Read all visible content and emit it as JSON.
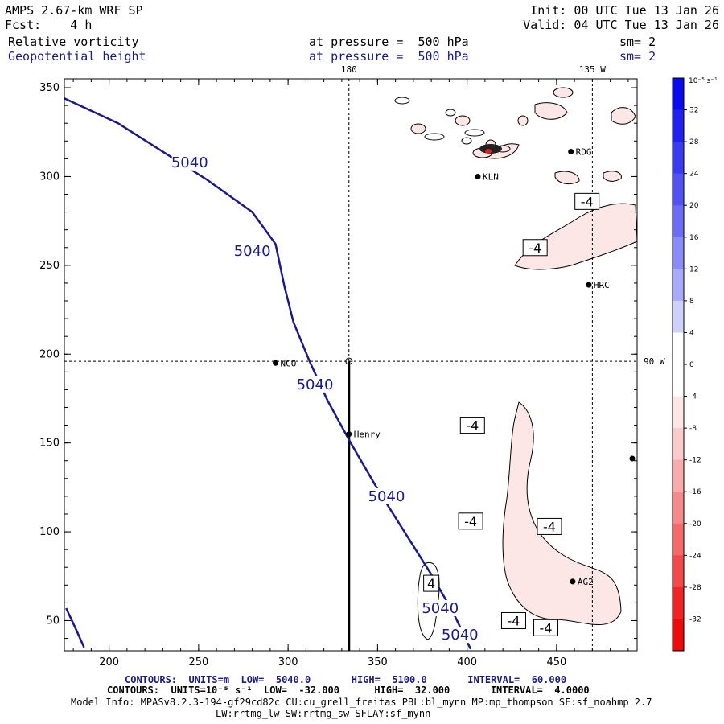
{
  "header": {
    "model": "AMPS 2.67-km WRF SP",
    "fcst_label": "Fcst:",
    "fcst_value": "4 h",
    "init": "Init: 00 UTC Tue 13 Jan 26",
    "valid": "Valid: 04 UTC Tue 13 Jan 26",
    "field1": "Relative vorticity",
    "field1_level": "at pressure =  500 hPa",
    "field1_sm": "sm= 2",
    "field2": "Geopotential height",
    "field2_level": "at pressure =  500 hPa",
    "field2_sm": "sm= 2"
  },
  "colors": {
    "height_contour": "#1a1a8c",
    "neg_fill": "#fde6e6",
    "pos_fill": "#e8e8ff"
  },
  "chart_data": {
    "type": "contour",
    "x_ticks": [
      200,
      250,
      300,
      350,
      400,
      450
    ],
    "y_ticks": [
      50,
      100,
      150,
      200,
      250,
      300,
      350
    ],
    "xlim": [
      175,
      495
    ],
    "ylim": [
      33,
      355
    ],
    "meridians": [
      {
        "label": "180",
        "x": 334
      },
      {
        "label": "135 W",
        "x": 470
      }
    ],
    "parallel": {
      "label": "90 W",
      "y": 196
    },
    "stations": [
      {
        "name": "NCO",
        "x": 293,
        "y": 195
      },
      {
        "name": "Henry",
        "x": 334,
        "y": 155
      },
      {
        "name": "KLN",
        "x": 406,
        "y": 300
      },
      {
        "name": "RDG",
        "x": 458,
        "y": 314
      },
      {
        "name": "HRC",
        "x": 468,
        "y": 239
      },
      {
        "name": "AG2",
        "x": 459,
        "y": 72
      }
    ],
    "height_contour": {
      "value": 5040,
      "points": [
        [
          175,
          344
        ],
        [
          205,
          330
        ],
        [
          230,
          314
        ],
        [
          255,
          298
        ],
        [
          280,
          280
        ],
        [
          293,
          262
        ],
        [
          298,
          238
        ],
        [
          303,
          218
        ],
        [
          312,
          196
        ],
        [
          322,
          174
        ],
        [
          335,
          150
        ],
        [
          350,
          124
        ],
        [
          365,
          100
        ],
        [
          380,
          76
        ],
        [
          392,
          55
        ],
        [
          402,
          34
        ]
      ],
      "labels": [
        {
          "text": "5040",
          "x": 245,
          "y": 308
        },
        {
          "text": "5040",
          "x": 280,
          "y": 258
        },
        {
          "text": "5040",
          "x": 315,
          "y": 183
        },
        {
          "text": "5040",
          "x": 355,
          "y": 120
        },
        {
          "text": "5040",
          "x": 385,
          "y": 57
        },
        {
          "text": "5040",
          "x": 396,
          "y": 42
        }
      ],
      "lower_left_points": [
        [
          176,
          57
        ],
        [
          182,
          44
        ],
        [
          186,
          35
        ]
      ]
    },
    "vorticity_labels": [
      {
        "text": "-4",
        "x": 467,
        "y": 286
      },
      {
        "text": "-4",
        "x": 438,
        "y": 260
      },
      {
        "text": "-4",
        "x": 403,
        "y": 160
      },
      {
        "text": "-4",
        "x": 402,
        "y": 106
      },
      {
        "text": "-4",
        "x": 446,
        "y": 103
      },
      {
        "text": "4",
        "x": 380,
        "y": 71
      },
      {
        "text": "-4",
        "x": 426,
        "y": 50
      },
      {
        "text": "-4",
        "x": 444,
        "y": 46
      }
    ],
    "colorbar": {
      "unit": "10⁻⁵ s⁻¹",
      "ticks": [
        32,
        28,
        24,
        20,
        16,
        12,
        8,
        4,
        0,
        -4,
        -8,
        -12,
        -16,
        -20,
        -24,
        -28,
        -32
      ],
      "colors": [
        "#0a0af0",
        "#2020f0",
        "#3a3af2",
        "#5252f4",
        "#6c6cf6",
        "#8a8af8",
        "#aaaafa",
        "#d0d0fc",
        "#ffffff",
        "#ffffff",
        "#fde6e6",
        "#fbcaca",
        "#f9aaaa",
        "#f68a8a",
        "#f46a6a",
        "#f24a4a",
        "#f02424",
        "#ee0a0a"
      ]
    }
  },
  "footer": {
    "line1_prefix": "CONTOURS:  UNITS=m  LOW=  5040.0       HIGH=  5100.0       INTERVAL=  60.000",
    "line2_prefix": "CONTOURS:  UNITS=10⁻⁵ s⁻¹  LOW=  -32.000      HIGH=  32.000       INTERVAL=  4.0000",
    "line3": "Model Info: MPASv8.2.3-194-gf29cd82c CU:cu_grell_freitas PBL:bl_mynn MP:mp_thompson SF:sf_noahmp 2.7",
    "line4": "LW:rrtmg_lw SW:rrtmg_sw SFLAY:sf_mynn"
  }
}
